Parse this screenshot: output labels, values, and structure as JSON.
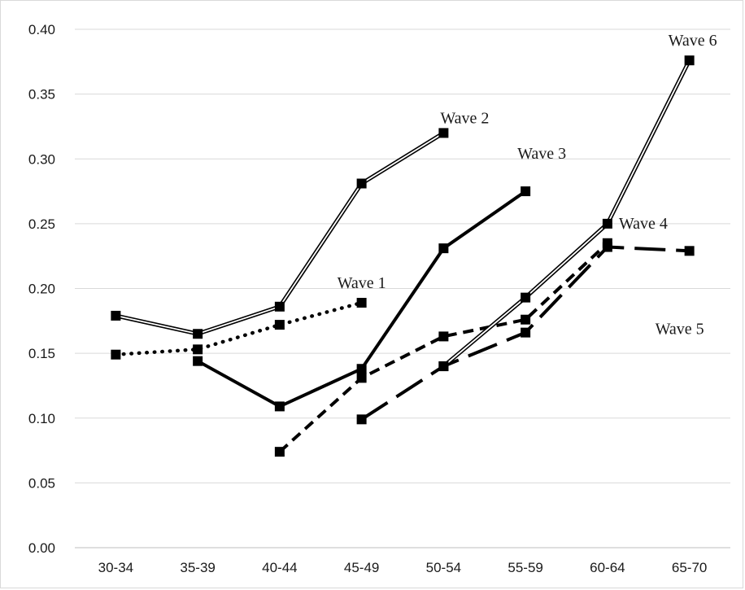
{
  "chart_data": {
    "type": "line",
    "categories": [
      "30-34",
      "35-39",
      "40-44",
      "45-49",
      "50-54",
      "55-59",
      "60-64",
      "65-70"
    ],
    "ylim": [
      0,
      0.4
    ],
    "yticks": [
      "0.00",
      "0.05",
      "0.10",
      "0.15",
      "0.20",
      "0.25",
      "0.30",
      "0.35",
      "0.40"
    ],
    "grid": true,
    "legend": "inline labels",
    "series": [
      {
        "name": "Wave 1",
        "style": "dotted",
        "values": [
          0.149,
          0.153,
          0.172,
          0.189,
          null,
          null,
          null,
          null
        ]
      },
      {
        "name": "Wave 2",
        "style": "double",
        "values": [
          0.179,
          0.165,
          0.186,
          0.281,
          0.32,
          null,
          null,
          null
        ]
      },
      {
        "name": "Wave 3",
        "style": "solid-thick",
        "values": [
          null,
          0.144,
          0.109,
          0.138,
          0.231,
          0.275,
          null,
          null
        ]
      },
      {
        "name": "Wave 4",
        "style": "dashed-short",
        "values": [
          null,
          null,
          0.074,
          0.131,
          0.163,
          0.176,
          0.235,
          null
        ]
      },
      {
        "name": "Wave 5",
        "style": "dashed-long",
        "values": [
          null,
          null,
          null,
          0.099,
          0.14,
          0.166,
          0.232,
          0.229
        ]
      },
      {
        "name": "Wave 6",
        "style": "double",
        "values": [
          null,
          null,
          null,
          null,
          0.14,
          0.193,
          0.25,
          0.376
        ]
      }
    ]
  }
}
